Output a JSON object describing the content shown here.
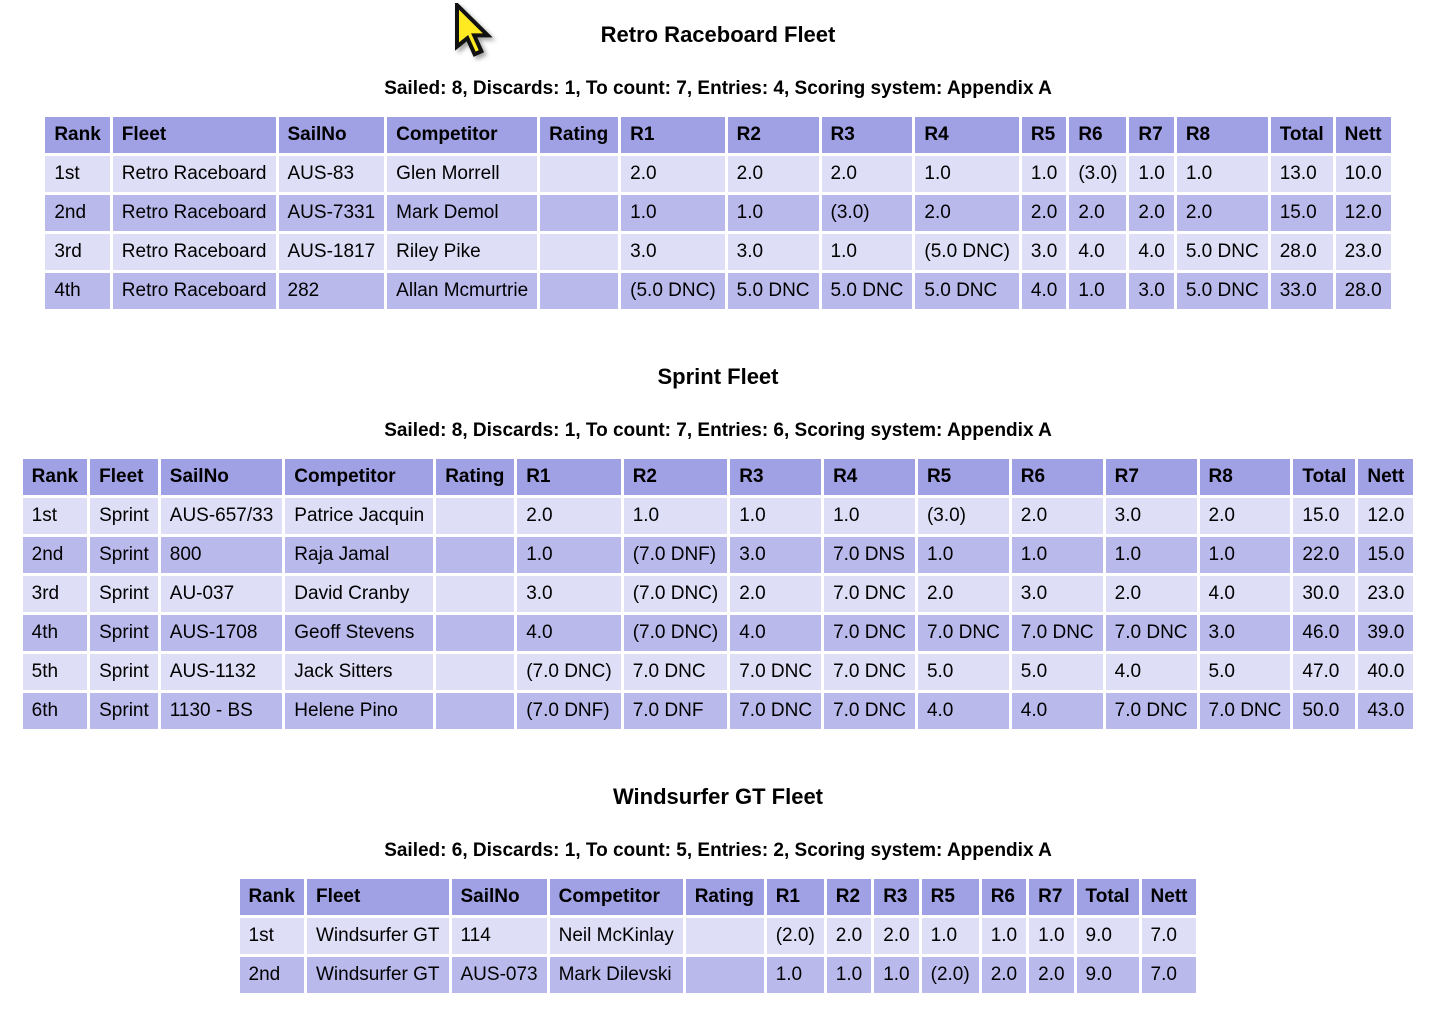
{
  "colors": {
    "header_bg": "#A0A0E4",
    "row_odd_bg": "#DEDEF6",
    "row_even_bg": "#B9B9EC",
    "text": "#000000",
    "cursor_fill": "#FFE920",
    "cursor_outline": "#111111"
  },
  "cursor": {
    "icon": "mouse-arrow-cursor"
  },
  "fleets": [
    {
      "title": "Retro Raceboard Fleet",
      "summary": "Sailed: 8, Discards: 1, To count: 7, Entries: 4, Scoring system: Appendix A",
      "columns": [
        "Rank",
        "Fleet",
        "SailNo",
        "Competitor",
        "Rating",
        "R1",
        "R2",
        "R3",
        "R4",
        "R5",
        "R6",
        "R7",
        "R8",
        "Total",
        "Nett"
      ],
      "rows": [
        [
          "1st",
          "Retro Raceboard",
          "AUS-83",
          "Glen Morrell",
          "",
          "2.0",
          "2.0",
          "2.0",
          "1.0",
          "1.0",
          "(3.0)",
          "1.0",
          "1.0",
          "13.0",
          "10.0"
        ],
        [
          "2nd",
          "Retro Raceboard",
          "AUS-7331",
          "Mark Demol",
          "",
          "1.0",
          "1.0",
          "(3.0)",
          "2.0",
          "2.0",
          "2.0",
          "2.0",
          "2.0",
          "15.0",
          "12.0"
        ],
        [
          "3rd",
          "Retro Raceboard",
          "AUS-1817",
          "Riley Pike",
          "",
          "3.0",
          "3.0",
          "1.0",
          "(5.0 DNC)",
          "3.0",
          "4.0",
          "4.0",
          "5.0 DNC",
          "28.0",
          "23.0"
        ],
        [
          "4th",
          "Retro Raceboard",
          "282",
          "Allan Mcmurtrie",
          "",
          "(5.0 DNC)",
          "5.0 DNC",
          "5.0 DNC",
          "5.0 DNC",
          "4.0",
          "1.0",
          "3.0",
          "5.0 DNC",
          "33.0",
          "28.0"
        ]
      ]
    },
    {
      "title": "Sprint Fleet",
      "summary": "Sailed: 8, Discards: 1, To count: 7, Entries: 6, Scoring system: Appendix A",
      "columns": [
        "Rank",
        "Fleet",
        "SailNo",
        "Competitor",
        "Rating",
        "R1",
        "R2",
        "R3",
        "R4",
        "R5",
        "R6",
        "R7",
        "R8",
        "Total",
        "Nett"
      ],
      "rows": [
        [
          "1st",
          "Sprint",
          "AUS-657/33",
          "Patrice Jacquin",
          "",
          "2.0",
          "1.0",
          "1.0",
          "1.0",
          "(3.0)",
          "2.0",
          "3.0",
          "2.0",
          "15.0",
          "12.0"
        ],
        [
          "2nd",
          "Sprint",
          "800",
          "Raja Jamal",
          "",
          "1.0",
          "(7.0 DNF)",
          "3.0",
          "7.0 DNS",
          "1.0",
          "1.0",
          "1.0",
          "1.0",
          "22.0",
          "15.0"
        ],
        [
          "3rd",
          "Sprint",
          "AU-037",
          "David Cranby",
          "",
          "3.0",
          "(7.0 DNC)",
          "2.0",
          "7.0 DNC",
          "2.0",
          "3.0",
          "2.0",
          "4.0",
          "30.0",
          "23.0"
        ],
        [
          "4th",
          "Sprint",
          "AUS-1708",
          "Geoff Stevens",
          "",
          "4.0",
          "(7.0 DNC)",
          "4.0",
          "7.0 DNC",
          "7.0 DNC",
          "7.0 DNC",
          "7.0 DNC",
          "3.0",
          "46.0",
          "39.0"
        ],
        [
          "5th",
          "Sprint",
          "AUS-1132",
          "Jack Sitters",
          "",
          "(7.0 DNC)",
          "7.0 DNC",
          "7.0 DNC",
          "7.0 DNC",
          "5.0",
          "5.0",
          "4.0",
          "5.0",
          "47.0",
          "40.0"
        ],
        [
          "6th",
          "Sprint",
          "1130 - BS",
          "Helene Pino",
          "",
          "(7.0 DNF)",
          "7.0 DNF",
          "7.0 DNC",
          "7.0 DNC",
          "4.0",
          "4.0",
          "7.0 DNC",
          "7.0 DNC",
          "50.0",
          "43.0"
        ]
      ]
    },
    {
      "title": "Windsurfer GT Fleet",
      "summary": "Sailed: 6, Discards: 1, To count: 5, Entries: 2, Scoring system: Appendix A",
      "columns": [
        "Rank",
        "Fleet",
        "SailNo",
        "Competitor",
        "Rating",
        "R1",
        "R2",
        "R3",
        "R5",
        "R6",
        "R7",
        "Total",
        "Nett"
      ],
      "rows": [
        [
          "1st",
          "Windsurfer GT",
          "114",
          "Neil McKinlay",
          "",
          "(2.0)",
          "2.0",
          "2.0",
          "1.0",
          "1.0",
          "1.0",
          "9.0",
          "7.0"
        ],
        [
          "2nd",
          "Windsurfer GT",
          "AUS-073",
          "Mark Dilevski",
          "",
          "1.0",
          "1.0",
          "1.0",
          "(2.0)",
          "2.0",
          "2.0",
          "9.0",
          "7.0"
        ]
      ]
    }
  ]
}
